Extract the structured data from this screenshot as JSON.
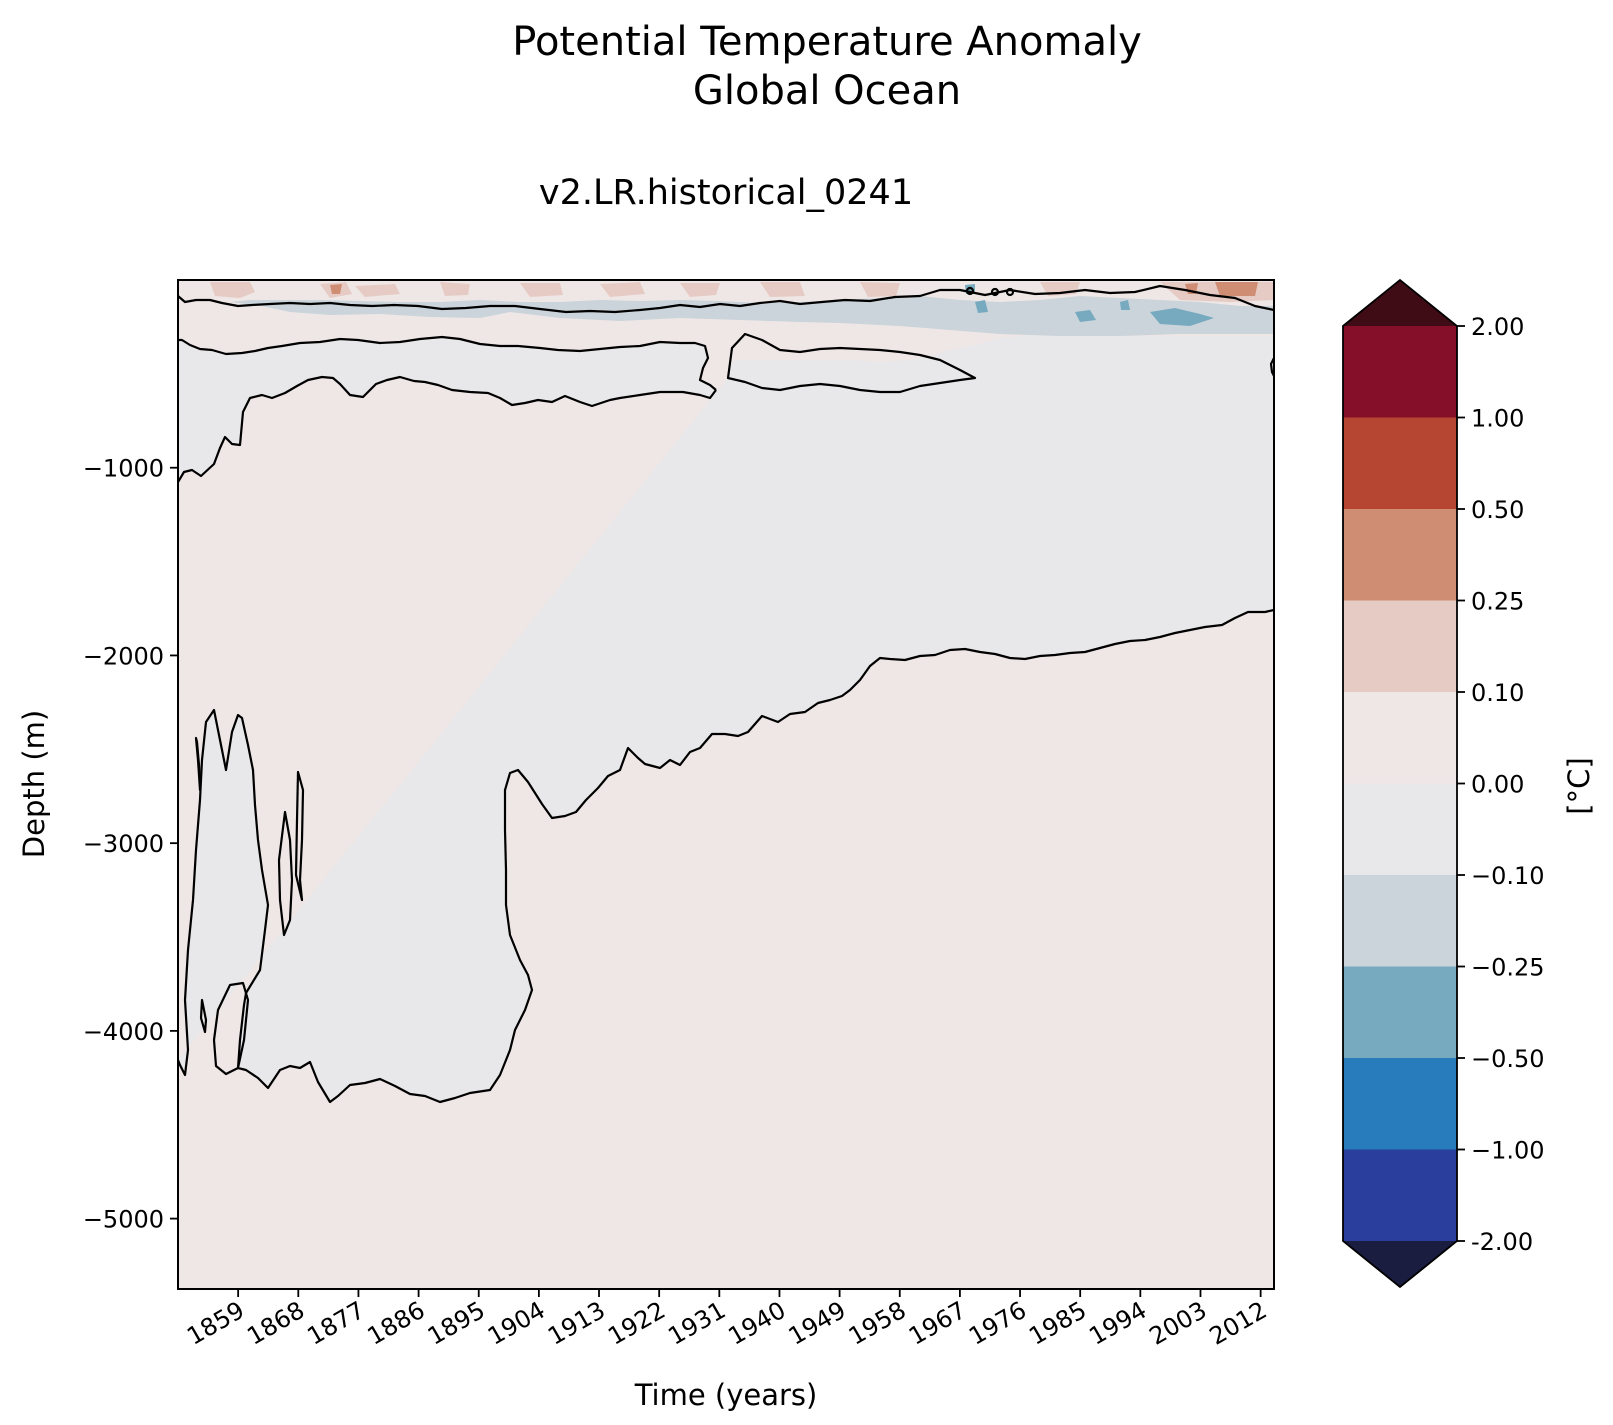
{
  "chart_data": {
    "type": "heatmap",
    "title": "Potential Temperature Anomaly",
    "title_line2": "Global Ocean",
    "subtitle": "v2.LR.historical_0241",
    "xlabel": "Time (years)",
    "ylabel": "Depth (m)",
    "colorbar_label": "[°C]",
    "xlim": [
      1850,
      2014
    ],
    "ylim": [
      -5375,
      0
    ],
    "x_ticks": [
      "1859",
      "1868",
      "1877",
      "1886",
      "1895",
      "1904",
      "1913",
      "1922",
      "1931",
      "1940",
      "1949",
      "1958",
      "1967",
      "1976",
      "1985",
      "1994",
      "2003",
      "2012"
    ],
    "y_ticks": [
      "−1000",
      "−2000",
      "−3000",
      "−4000",
      "−5000"
    ],
    "y_tick_values": [
      -1000,
      -2000,
      -3000,
      -4000,
      -5000
    ],
    "levels": [
      "2.00",
      "1.00",
      "0.50",
      "0.25",
      "0.10",
      "0.00",
      "−0.10",
      "−0.25",
      "−0.50",
      "−1.00",
      "-2.00"
    ],
    "colors": {
      "over": "#3f0c16",
      "under": "#1a1c40",
      "bands": [
        "#850e28",
        "#b64632",
        "#cf8d74",
        "#e5cbc4",
        "#efe7e6",
        "#e8e7e9",
        "#cad4da",
        "#77a9bf",
        "#287cbb",
        "#2a3e9d"
      ]
    },
    "regions": [
      {
        "name": "positive anomaly (0 to 0.10 °C)",
        "value_range": [
          0,
          0.1
        ]
      },
      {
        "name": "negative anomaly (−0.10 to 0 °C)",
        "value_range": [
          -0.1,
          0
        ]
      },
      {
        "name": "surface warm patches (0.10 to 0.50 °C)",
        "value_range": [
          0.1,
          0.5
        ]
      },
      {
        "name": "near-surface cool band (−0.50 to −0.10 °C)",
        "value_range": [
          -0.5,
          -0.1
        ]
      }
    ]
  }
}
